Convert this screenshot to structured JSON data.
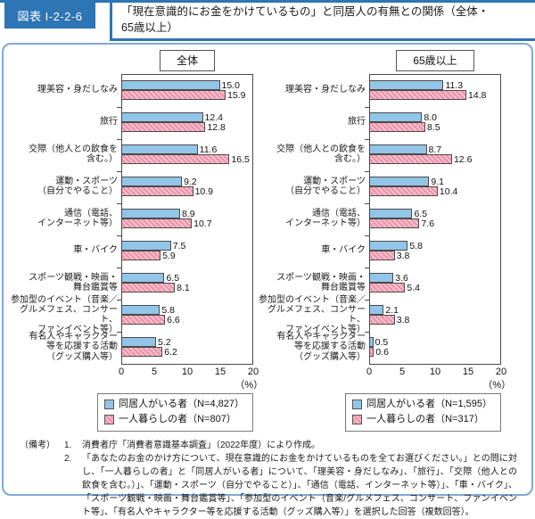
{
  "header": {
    "figure_label": "図表 I-2-2-6",
    "title_line1": "「現在意識的にお金をかけているもの」と同居人の有無との関係（全体・",
    "title_line2": "65歳以上）"
  },
  "colors": {
    "header_blue": "#2e75b5",
    "frame_blue": "#7fa9d6",
    "bar_blue": "#92c5e8",
    "bar_pink": "#ef93a9",
    "bar_pink_stripe": "#f9ccd6",
    "axis_line": "#4a4a4a"
  },
  "chart_data": [
    {
      "type": "bar",
      "orientation": "horizontal",
      "title": "全体",
      "categories": [
        "理美容・身だしなみ",
        "旅行",
        "交際（他人との飲食を含む。）",
        "運動・スポーツ（自分でやること）",
        "通信（電話、インターネット等）",
        "車・バイク",
        "スポーツ観戦・映画・舞台鑑賞等",
        "参加型のイベント（音楽／グルメフェス、コンサート、ファンイベント等）",
        "有名人やキャラクター等を応援する活動（グッズ購入等）"
      ],
      "category_label_lines": [
        [
          "理美容・身だしなみ"
        ],
        [
          "旅行"
        ],
        [
          "交際（他人との飲食を",
          "含む。）"
        ],
        [
          "運動・スポーツ",
          "（自分でやること）"
        ],
        [
          "通信（電話、",
          "インターネット等）"
        ],
        [
          "車・バイク"
        ],
        [
          "スポーツ観戦・映画・",
          "舞台鑑賞等"
        ],
        [
          "参加型のイベント（音楽／",
          "グルメフェス、コンサート、",
          "ファンイベント等）"
        ],
        [
          "有名人やキャラクター",
          "等を応援する活動",
          "（グッズ購入等）"
        ]
      ],
      "series": [
        {
          "name": "同居人がいる者（N=4,827）",
          "values": [
            15.0,
            12.4,
            11.6,
            9.2,
            8.9,
            7.5,
            6.5,
            5.8,
            5.2
          ]
        },
        {
          "name": "一人暮らしの者（N=807）",
          "values": [
            15.9,
            12.8,
            16.5,
            10.9,
            10.7,
            5.9,
            8.1,
            6.6,
            6.2
          ]
        }
      ],
      "xlim": [
        0,
        20
      ],
      "xticks": [
        0,
        5,
        10,
        15,
        20
      ],
      "x_unit": "（%）",
      "grid": false,
      "legend_position": "bottom"
    },
    {
      "type": "bar",
      "orientation": "horizontal",
      "title": "65歳以上",
      "categories": [
        "理美容・身だしなみ",
        "旅行",
        "交際（他人との飲食を含む。）",
        "運動・スポーツ（自分でやること）",
        "通信（電話、インターネット等）",
        "車・バイク",
        "スポーツ観戦・映画・舞台鑑賞等",
        "参加型のイベント（音楽／グルメフェス、コンサート、ファンイベント等）",
        "有名人やキャラクター等を応援する活動（グッズ購入等）"
      ],
      "category_label_lines": [
        [
          "理美容・身だしなみ"
        ],
        [
          "旅行"
        ],
        [
          "交際（他人との飲食を",
          "含む。）"
        ],
        [
          "運動・スポーツ",
          "（自分でやること）"
        ],
        [
          "通信（電話、",
          "インターネット等）"
        ],
        [
          "車・バイク"
        ],
        [
          "スポーツ観戦・映画・",
          "舞台鑑賞等"
        ],
        [
          "参加型のイベント（音楽／",
          "グルメフェス、コンサート、",
          "ファンイベント等）"
        ],
        [
          "有名人やキャラクター",
          "等を応援する活動",
          "（グッズ購入等）"
        ]
      ],
      "series": [
        {
          "name": "同居人がいる者（N=1,595）",
          "values": [
            11.3,
            8.0,
            8.7,
            9.1,
            6.5,
            5.8,
            3.6,
            2.1,
            0.5
          ]
        },
        {
          "name": "一人暮らしの者（N=317）",
          "values": [
            14.8,
            8.5,
            12.6,
            10.4,
            7.6,
            3.8,
            5.4,
            3.8,
            0.6
          ]
        }
      ],
      "xlim": [
        0,
        20
      ],
      "xticks": [
        0,
        5,
        10,
        15,
        20
      ],
      "x_unit": "（%）",
      "grid": false,
      "legend_position": "bottom"
    }
  ],
  "notes": {
    "prefix": "（備考）",
    "items": [
      {
        "num": "1.",
        "text": "消費者庁「消費者意識基本調査」（2022年度）により作成。"
      },
      {
        "num": "2.",
        "text": "「あなたのお金のかけ方について、現在意識的にお金をかけているものを全てお選びください。」との問に対し、「一人暮らしの者」と「同居人がいる者」について、「理美容・身だしなみ」、「旅行」、「交際（他人との飲食を含む。）」、「運動・スポーツ（自分でやること）」、「通信（電話、インターネット等）」、「車・バイク」、「スポーツ観戦・映画・舞台鑑賞等」、「参加型のイベント（音楽/グルメフェス、コンサート、ファンイベント等」、「有名人やキャラクター等を応援する活動（グッズ購入等）」を選択した回答（複数回答）。"
      }
    ]
  }
}
